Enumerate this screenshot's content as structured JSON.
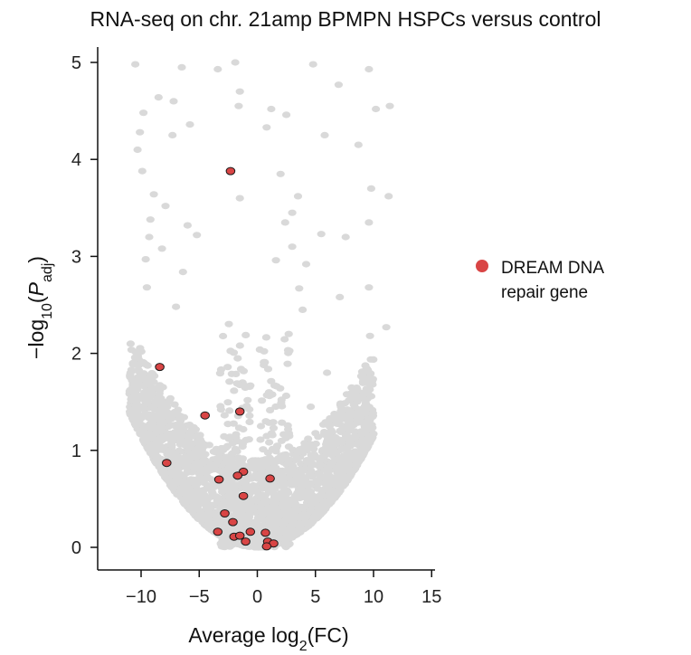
{
  "chart_data": {
    "type": "scatter",
    "title": "RNA-seq on chr. 21amp BPMPN HSPCs versus control",
    "xlabel": "Average log2(FC)",
    "ylabel": "−log10(Padj)",
    "xlim": [
      -13,
      15
    ],
    "ylim": [
      -0.25,
      5.2
    ],
    "xticks": [
      "−10",
      "−5",
      "0",
      "5",
      "10",
      "15"
    ],
    "yticks": [
      "0",
      "1",
      "2",
      "3",
      "4",
      "5"
    ],
    "grid": false,
    "legend": {
      "placement": "right",
      "entries": [
        {
          "label": "DREAM DNA repair gene",
          "color": "#d94545"
        }
      ]
    },
    "colors": {
      "background_genes": "#d9d9d9",
      "highlight": "#d94545",
      "highlight_edge": "#1a1a1a"
    },
    "series": [
      {
        "name": "DREAM DNA repair gene",
        "points": [
          {
            "x": -2.3,
            "y": 3.88
          },
          {
            "x": -8.4,
            "y": 1.86
          },
          {
            "x": -4.5,
            "y": 1.36
          },
          {
            "x": -1.5,
            "y": 1.4
          },
          {
            "x": -7.8,
            "y": 0.87
          },
          {
            "x": -1.2,
            "y": 0.78
          },
          {
            "x": -1.7,
            "y": 0.74
          },
          {
            "x": -3.3,
            "y": 0.7
          },
          {
            "x": 1.1,
            "y": 0.71
          },
          {
            "x": -1.2,
            "y": 0.53
          },
          {
            "x": -2.8,
            "y": 0.35
          },
          {
            "x": -2.1,
            "y": 0.26
          },
          {
            "x": -3.4,
            "y": 0.16
          },
          {
            "x": -2.0,
            "y": 0.11
          },
          {
            "x": -1.5,
            "y": 0.12
          },
          {
            "x": -0.6,
            "y": 0.16
          },
          {
            "x": 0.7,
            "y": 0.15
          },
          {
            "x": -1.0,
            "y": 0.06
          },
          {
            "x": 0.9,
            "y": 0.06
          },
          {
            "x": 1.4,
            "y": 0.04
          },
          {
            "x": 0.8,
            "y": 0.01
          }
        ]
      }
    ],
    "background_sample": [
      {
        "x": -10.5,
        "y": 4.98
      },
      {
        "x": -6.5,
        "y": 4.95
      },
      {
        "x": -3.4,
        "y": 4.93
      },
      {
        "x": -1.9,
        "y": 5.0
      },
      {
        "x": 4.8,
        "y": 4.98
      },
      {
        "x": 9.6,
        "y": 4.93
      },
      {
        "x": 7.0,
        "y": 4.77
      },
      {
        "x": -1.5,
        "y": 4.7
      },
      {
        "x": -8.5,
        "y": 4.64
      },
      {
        "x": -7.2,
        "y": 4.6
      },
      {
        "x": -1.6,
        "y": 4.55
      },
      {
        "x": 1.2,
        "y": 4.52
      },
      {
        "x": 2.5,
        "y": 4.46
      },
      {
        "x": 10.2,
        "y": 4.52
      },
      {
        "x": 11.4,
        "y": 4.55
      },
      {
        "x": -9.8,
        "y": 4.48
      },
      {
        "x": -5.8,
        "y": 4.36
      },
      {
        "x": -10.1,
        "y": 4.28
      },
      {
        "x": 0.8,
        "y": 4.33
      },
      {
        "x": -10.3,
        "y": 4.1
      },
      {
        "x": -7.3,
        "y": 4.25
      },
      {
        "x": 5.8,
        "y": 4.25
      },
      {
        "x": 8.7,
        "y": 4.15
      },
      {
        "x": -9.9,
        "y": 3.88
      },
      {
        "x": 2.0,
        "y": 3.85
      },
      {
        "x": -8.9,
        "y": 3.64
      },
      {
        "x": -1.5,
        "y": 3.6
      },
      {
        "x": 3.5,
        "y": 3.62
      },
      {
        "x": 9.8,
        "y": 3.7
      },
      {
        "x": 11.3,
        "y": 3.62
      },
      {
        "x": -7.9,
        "y": 3.52
      },
      {
        "x": 3.0,
        "y": 3.45
      },
      {
        "x": -9.2,
        "y": 3.38
      },
      {
        "x": -6.0,
        "y": 3.32
      },
      {
        "x": 2.4,
        "y": 3.35
      },
      {
        "x": 9.6,
        "y": 3.35
      },
      {
        "x": -9.3,
        "y": 3.2
      },
      {
        "x": -5.2,
        "y": 3.22
      },
      {
        "x": 5.5,
        "y": 3.23
      },
      {
        "x": 7.6,
        "y": 3.2
      },
      {
        "x": -8.2,
        "y": 3.08
      },
      {
        "x": 3.0,
        "y": 3.1
      },
      {
        "x": -9.6,
        "y": 2.97
      },
      {
        "x": 1.6,
        "y": 2.96
      },
      {
        "x": 4.2,
        "y": 2.92
      },
      {
        "x": -6.4,
        "y": 2.84
      },
      {
        "x": -9.5,
        "y": 2.68
      },
      {
        "x": 3.6,
        "y": 2.67
      },
      {
        "x": 7.1,
        "y": 2.58
      },
      {
        "x": 9.6,
        "y": 2.68
      },
      {
        "x": -7.0,
        "y": 2.48
      },
      {
        "x": 3.9,
        "y": 2.45
      },
      {
        "x": -10.9,
        "y": 2.1
      },
      {
        "x": 2.7,
        "y": 2.2
      },
      {
        "x": 9.7,
        "y": 2.18
      },
      {
        "x": 11.1,
        "y": 2.27
      },
      {
        "x": -10.7,
        "y": 1.9
      },
      {
        "x": -9.6,
        "y": 1.72
      },
      {
        "x": 6.0,
        "y": 1.8
      },
      {
        "x": 9.6,
        "y": 1.75
      },
      {
        "x": -9.5,
        "y": 1.56
      },
      {
        "x": 4.6,
        "y": 1.45
      },
      {
        "x": 8.6,
        "y": 1.3
      },
      {
        "x": -8.7,
        "y": 1.18
      }
    ]
  }
}
